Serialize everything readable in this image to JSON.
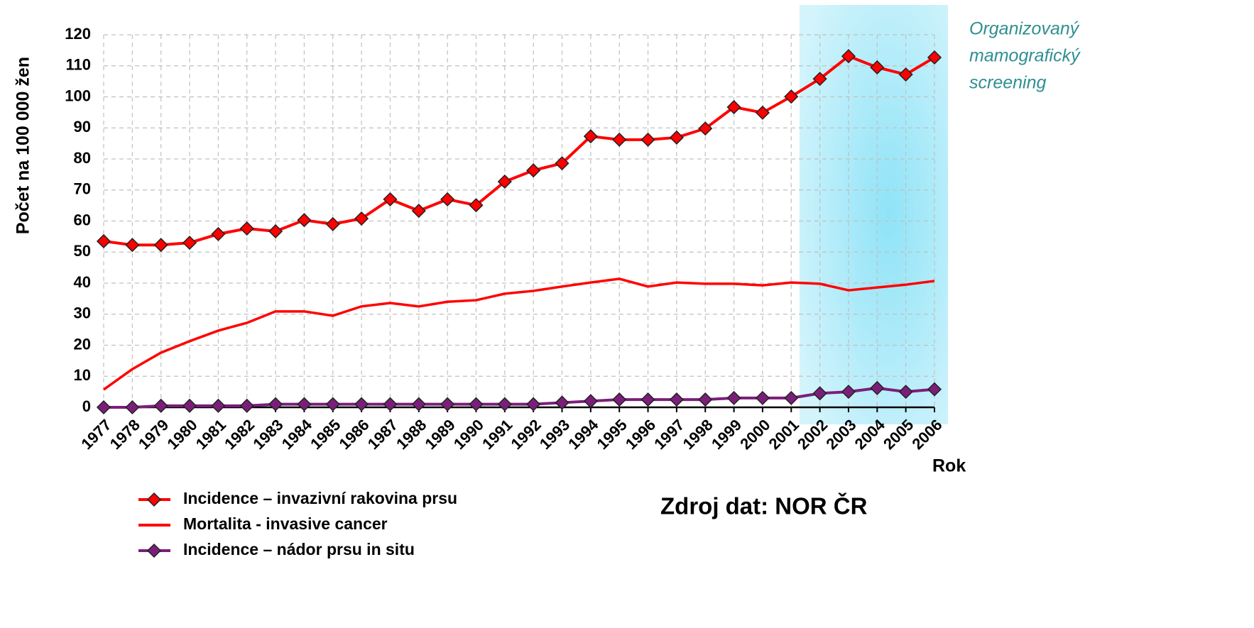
{
  "chart_data": {
    "type": "line",
    "ylabel": "Počet  na 100 000 žen",
    "xlabel": "Rok",
    "annotation": [
      "Organizovaný",
      "mamografický",
      "screening"
    ],
    "source": "Zdroj dat: NOR ČR",
    "categories": [
      "1977",
      "1978",
      "1979",
      "1980",
      "1981",
      "1982",
      "1983",
      "1984",
      "1985",
      "1986",
      "1987",
      "1988",
      "1989",
      "1990",
      "1991",
      "1992",
      "1993",
      "1994",
      "1995",
      "1996",
      "1997",
      "1998",
      "1999",
      "2000",
      "2001",
      "2002",
      "2003",
      "2004",
      "2005",
      "2006"
    ],
    "ylim": [
      0,
      120
    ],
    "yticks": [
      0,
      10,
      20,
      30,
      40,
      50,
      60,
      70,
      80,
      90,
      100,
      110,
      120
    ],
    "grid": true,
    "series": [
      {
        "name": "Incidence – invazivní rakovina prsu",
        "color": "#ff0000",
        "marker": "diamond",
        "values": [
          53.5,
          52.3,
          52.3,
          53,
          55.8,
          57.6,
          56.7,
          60.3,
          59,
          60.8,
          67,
          63.3,
          67,
          65.1,
          72.7,
          76.3,
          78.6,
          87.3,
          86.2,
          86.2,
          86.9,
          89.8,
          96.7,
          94.9,
          100.1,
          105.8,
          113.1,
          109.5,
          107.2,
          112.7
        ]
      },
      {
        "name": "Mortalita - invasive cancer",
        "color": "#ff0000",
        "values": [
          5.7,
          12.3,
          17.6,
          21.3,
          24.7,
          27.2,
          30.9,
          30.9,
          29.5,
          32.5,
          33.6,
          32.5,
          34,
          34.5,
          36.6,
          37.5,
          38.9,
          40.2,
          41.4,
          38.9,
          40.2,
          39.8,
          39.8,
          39.3,
          40.2,
          39.8,
          37.7,
          38.6,
          39.5,
          40.7
        ]
      },
      {
        "name": "Incidence – nádor prsu in situ",
        "color": "#7b1e7a",
        "marker": "diamond",
        "values": [
          0,
          0,
          0.5,
          0.5,
          0.5,
          0.5,
          1,
          1,
          1,
          1,
          1,
          1,
          1,
          1,
          1,
          1,
          1.5,
          2,
          2.5,
          2.5,
          2.5,
          2.5,
          3,
          3,
          3,
          4.5,
          5,
          6.2,
          5,
          5.8
        ]
      }
    ]
  }
}
